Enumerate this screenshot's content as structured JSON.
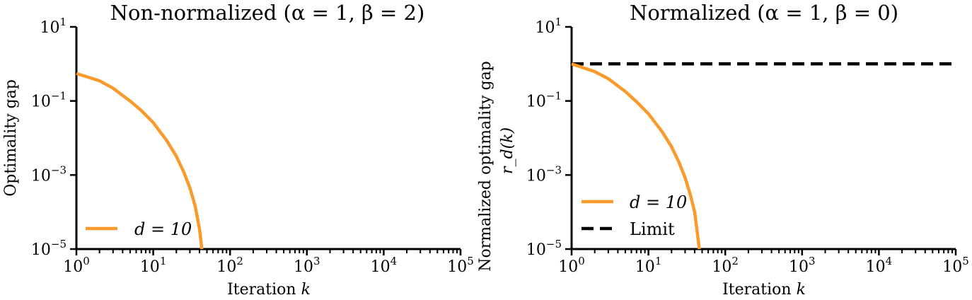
{
  "chart_data": [
    {
      "type": "line",
      "title": "Non-normalized (α = 1, β = 2)",
      "xlabel": "Iteration k",
      "ylabel": "Optimality gap",
      "xscale": "log",
      "yscale": "log",
      "xlim": [
        1,
        100000
      ],
      "ylim": [
        1e-05,
        10
      ],
      "xticks": [
        "10^0",
        "10^1",
        "10^2",
        "10^3",
        "10^4",
        "10^5"
      ],
      "yticks": [
        "10^1",
        "10^-1",
        "10^-3",
        "10^-5"
      ],
      "grid": false,
      "legend_position": "lower left",
      "series": [
        {
          "name": "d = 10",
          "color": "#fa9a2c",
          "style": "solid",
          "x": [
            1,
            2,
            3,
            5,
            7,
            10,
            15,
            20,
            25,
            30,
            35,
            40,
            43
          ],
          "y": [
            0.55,
            0.35,
            0.22,
            0.1,
            0.055,
            0.026,
            0.0085,
            0.0032,
            0.0012,
            0.00045,
            0.00015,
            3.5e-05,
            1e-05
          ]
        }
      ]
    },
    {
      "type": "line",
      "title": "Normalized (α = 1, β = 0)",
      "xlabel": "Iteration k",
      "ylabel": "Normalized optimality gap r_d(k)",
      "xscale": "log",
      "yscale": "log",
      "xlim": [
        1,
        100000
      ],
      "ylim": [
        1e-05,
        10
      ],
      "xticks": [
        "10^0",
        "10^1",
        "10^2",
        "10^3",
        "10^4",
        "10^5"
      ],
      "yticks": [
        "10^1",
        "10^-1",
        "10^-3",
        "10^-5"
      ],
      "grid": false,
      "legend_position": "lower left",
      "series": [
        {
          "name": "d = 10",
          "color": "#fa9a2c",
          "style": "solid",
          "x": [
            1,
            2,
            3,
            5,
            7,
            10,
            15,
            20,
            25,
            30,
            35,
            40,
            46
          ],
          "y": [
            1.0,
            0.62,
            0.4,
            0.18,
            0.095,
            0.045,
            0.015,
            0.0058,
            0.0022,
            0.00085,
            0.0003,
            0.0001,
            1e-05
          ]
        },
        {
          "name": "Limit",
          "color": "#000000",
          "style": "dashed",
          "x": [
            1,
            100000
          ],
          "y": [
            1.0,
            1.0
          ]
        }
      ]
    }
  ],
  "left": {
    "title": "Non-normalized (α = 1, β = 2)",
    "ylabel": "Optimality gap",
    "xlabel_text": "Iteration ",
    "xlabel_var": "k",
    "legend": [
      "d = 10"
    ]
  },
  "right": {
    "title": "Normalized (α = 1, β = 0)",
    "ylabel_line1": "Normalized optimality gap",
    "ylabel_line2": "r_d(k)",
    "xlabel_text": "Iteration ",
    "xlabel_var": "k",
    "legend": [
      "d = 10",
      "Limit"
    ]
  },
  "colors": {
    "series": "#fa9a2c",
    "limit": "#000000",
    "axes": "#000000"
  }
}
